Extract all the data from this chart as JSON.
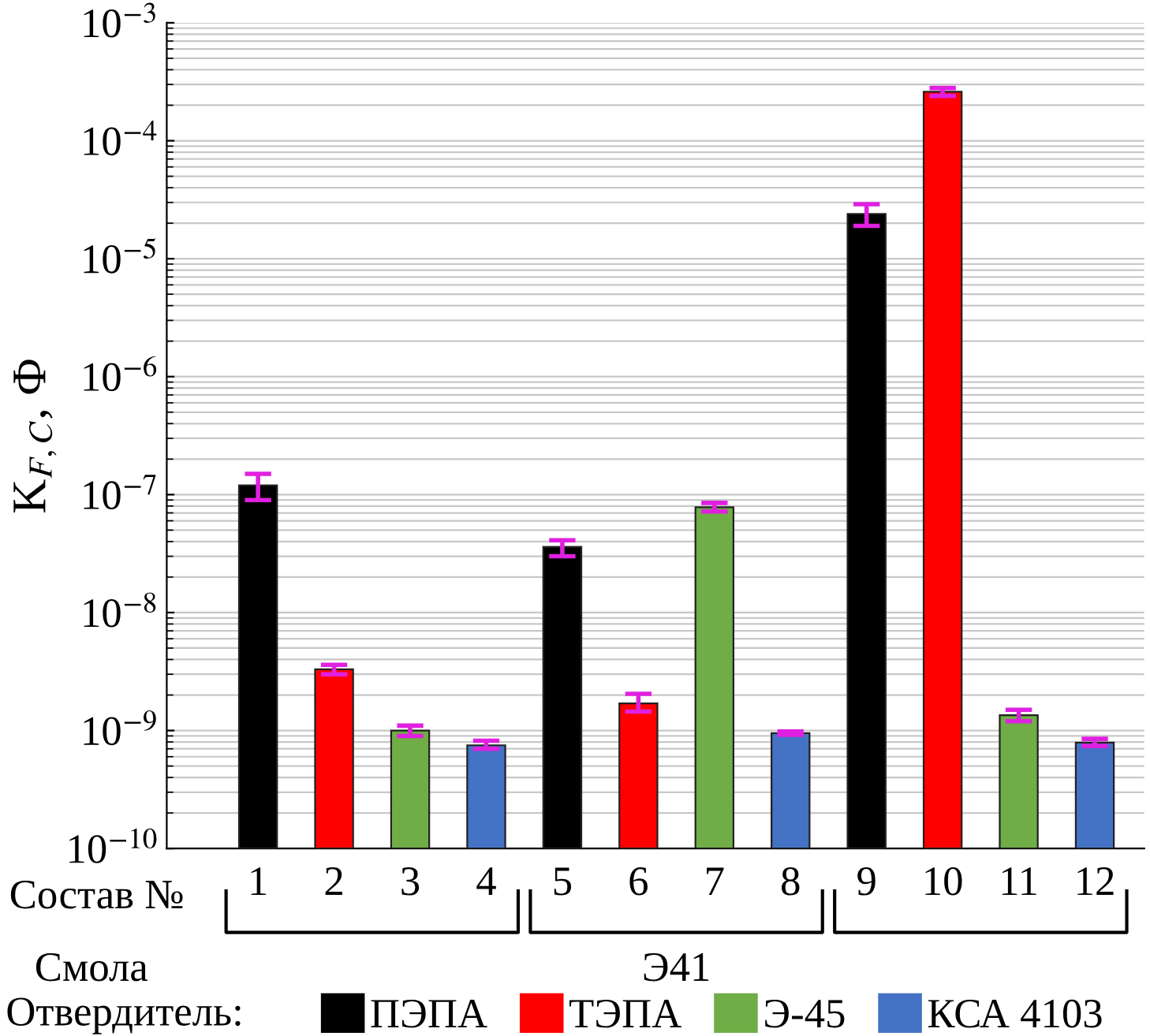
{
  "chart_data": {
    "type": "bar",
    "ylabel": "K$_{F,C}$, Ф",
    "xlabel": "Состав №",
    "legend_title": "Отвердитель:",
    "categories": [
      "1",
      "2",
      "3",
      "4",
      "5",
      "6",
      "7",
      "8",
      "9",
      "10",
      "11",
      "12"
    ],
    "series": [
      {
        "name": "ПЭПА",
        "color": "#000000",
        "values": [
          1.2e-07,
          null,
          null,
          null,
          3.6e-08,
          null,
          null,
          null,
          2.4e-05,
          null,
          null,
          null
        ],
        "errors": [
          [
            9e-08,
            1.5e-07
          ],
          null,
          null,
          null,
          [
            3e-08,
            4.1e-08
          ],
          null,
          null,
          null,
          [
            1.9e-05,
            2.9e-05
          ],
          null,
          null,
          null
        ]
      },
      {
        "name": "ТЭПА",
        "color": "#ff0000",
        "values": [
          null,
          3.3e-09,
          null,
          null,
          null,
          1.7e-09,
          null,
          null,
          null,
          0.00026,
          null,
          null
        ],
        "errors": [
          null,
          [
            3e-09,
            3.6e-09
          ],
          null,
          null,
          null,
          [
            1.45e-09,
            2.05e-09
          ],
          null,
          null,
          null,
          [
            0.00024,
            0.00028
          ],
          null,
          null
        ]
      },
      {
        "name": "Э-45",
        "color": "#70ad47",
        "values": [
          null,
          null,
          1e-09,
          null,
          null,
          null,
          7.8e-08,
          null,
          null,
          null,
          1.35e-09,
          null
        ],
        "errors": [
          null,
          null,
          [
            9e-10,
            1.1e-09
          ],
          null,
          null,
          null,
          [
            7.2e-08,
            8.5e-08
          ],
          null,
          null,
          null,
          [
            1.2e-09,
            1.5e-09
          ],
          null
        ]
      },
      {
        "name": "КСА 4103",
        "color": "#4472c4",
        "values": [
          null,
          null,
          null,
          7.5e-10,
          null,
          null,
          null,
          9.5e-10,
          null,
          null,
          null,
          7.9e-10
        ],
        "errors": [
          null,
          null,
          null,
          [
            7e-10,
            8.2e-10
          ],
          null,
          null,
          null,
          [
            9.2e-10,
            9.8e-10
          ],
          null,
          null,
          null,
          [
            7.4e-10,
            8.5e-10
          ]
        ]
      }
    ],
    "log": "y",
    "ylim": [
      1e-10,
      0.001
    ],
    "yticks": [
      {
        "value": 1e-10,
        "label": "10$^{−10}$"
      },
      {
        "value": 1e-09,
        "label": "10$^{−9}$"
      },
      {
        "value": 1e-08,
        "label": "10$^{−8}$"
      },
      {
        "value": 1e-07,
        "label": "10$^{−7}$"
      },
      {
        "value": 1e-06,
        "label": "10$^{−6}$"
      },
      {
        "value": 1e-05,
        "label": "10$^{−5}$"
      },
      {
        "value": 0.0001,
        "label": "10$^{−4}$"
      },
      {
        "value": 0.001,
        "label": "10$^{−3}$"
      }
    ],
    "grid": "y",
    "legend": "bottom",
    "annotations": [
      "Смола",
      "Э41"
    ]
  }
}
